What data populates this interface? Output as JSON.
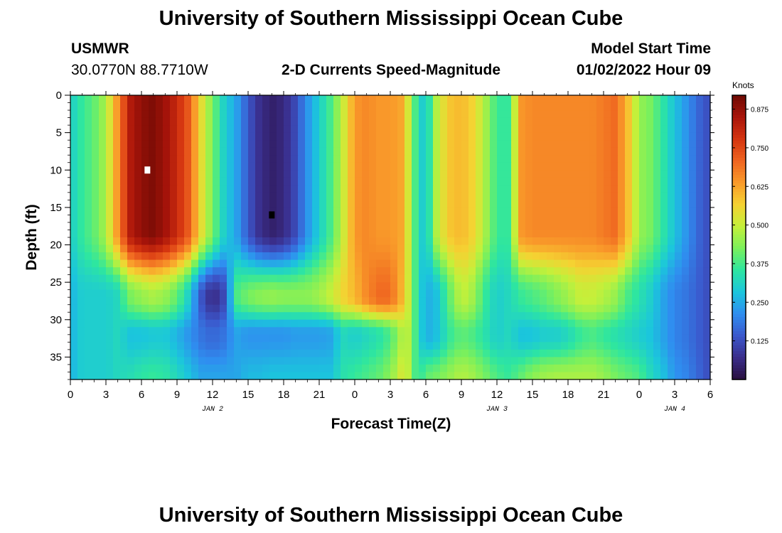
{
  "header": {
    "title": "University of Southern Mississippi Ocean Cube",
    "station": "USMWR",
    "coords": "30.0770N  88.7710W",
    "chart_title": "2-D Currents Speed-Magnitude",
    "model_label": "Model Start Time",
    "model_value": "01/02/2022 Hour 09"
  },
  "footer": {
    "title": "University of Southern Mississippi Ocean Cube"
  },
  "colors": {
    "ramp": [
      "#2a1040",
      "#3a2d8a",
      "#3b58cc",
      "#2f8ef0",
      "#1bc6dc",
      "#2ee6a0",
      "#7bf05c",
      "#c4f03a",
      "#f5d232",
      "#f99a2a",
      "#ef6420",
      "#d43410",
      "#a8140a",
      "#6e0a04"
    ]
  },
  "chart_data": {
    "type": "heatmap",
    "title": "2-D Currents Speed-Magnitude",
    "xlabel": "Forecast Time(Z)",
    "ylabel": "Depth (ft)",
    "units": "Knots",
    "x_ticks": [
      "0",
      "3",
      "6",
      "9",
      "12",
      "15",
      "18",
      "21",
      "0",
      "3",
      "6",
      "9",
      "12",
      "15",
      "18",
      "21",
      "0",
      "3",
      "6"
    ],
    "x_range_hours": [
      0,
      54
    ],
    "y_ticks": [
      "0",
      "5",
      "10",
      "15",
      "20",
      "25",
      "30",
      "35"
    ],
    "y_range_ft": [
      0,
      38
    ],
    "date_labels": [
      "JAN 2",
      "JAN 3",
      "JAN 4"
    ],
    "date_label_hours": [
      12,
      36,
      51
    ],
    "colorbar_ticks": [
      "0.875",
      "0.750",
      "0.625",
      "0.500",
      "0.375",
      "0.250",
      "0.125"
    ],
    "colorbar_tick_values": [
      0.875,
      0.75,
      0.625,
      0.5,
      0.375,
      0.25,
      0.125
    ],
    "colorbar_range": [
      0,
      0.92
    ],
    "grid": {
      "nx": 90,
      "ny": 38
    },
    "max_marker": {
      "hour": 6.5,
      "depth_ft": 10
    },
    "min_marker": {
      "hour": 17,
      "depth_ft": 16
    },
    "columns": [
      {
        "h": 0,
        "s": 0.3,
        "b": 0.26,
        "bs": 0.26,
        "be": 0.26
      },
      {
        "h": 1,
        "s": 0.36,
        "b": 0.3,
        "bs": 0.3,
        "be": 0.3
      },
      {
        "h": 2,
        "s": 0.4,
        "b": 0.3,
        "bs": 0.3,
        "be": 0.3
      },
      {
        "h": 3,
        "s": 0.47,
        "b": 0.3,
        "bs": 0.3,
        "be": 0.3
      },
      {
        "h": 4,
        "s": 0.65,
        "b": 0.32,
        "bs": 0.32,
        "be": 0.32
      },
      {
        "h": 5,
        "s": 0.83,
        "b": 0.42,
        "bs": 0.28,
        "be": 0.33
      },
      {
        "h": 6,
        "s": 0.88,
        "b": 0.45,
        "bs": 0.28,
        "be": 0.35
      },
      {
        "h": 7,
        "s": 0.9,
        "b": 0.47,
        "bs": 0.29,
        "be": 0.36
      },
      {
        "h": 8,
        "s": 0.86,
        "b": 0.45,
        "bs": 0.29,
        "be": 0.35
      },
      {
        "h": 9,
        "s": 0.8,
        "b": 0.4,
        "bs": 0.26,
        "be": 0.32
      },
      {
        "h": 10,
        "s": 0.72,
        "b": 0.3,
        "bs": 0.22,
        "be": 0.28
      },
      {
        "h": 11,
        "s": 0.55,
        "b": 0.14,
        "bs": 0.18,
        "be": 0.24
      },
      {
        "h": 12,
        "s": 0.42,
        "b": 0.06,
        "bs": 0.16,
        "be": 0.24
      },
      {
        "h": 13,
        "s": 0.3,
        "b": 0.12,
        "bs": 0.18,
        "be": 0.24
      },
      {
        "h": 14,
        "s": 0.24,
        "b": 0.38,
        "bs": 0.24,
        "be": 0.24
      },
      {
        "h": 15,
        "s": 0.14,
        "b": 0.42,
        "bs": 0.22,
        "be": 0.27
      },
      {
        "h": 16,
        "s": 0.07,
        "b": 0.44,
        "bs": 0.22,
        "be": 0.27
      },
      {
        "h": 17,
        "s": 0.04,
        "b": 0.45,
        "bs": 0.22,
        "be": 0.28
      },
      {
        "h": 18,
        "s": 0.06,
        "b": 0.44,
        "bs": 0.22,
        "be": 0.28
      },
      {
        "h": 19,
        "s": 0.12,
        "b": 0.44,
        "bs": 0.23,
        "be": 0.28
      },
      {
        "h": 20,
        "s": 0.22,
        "b": 0.44,
        "bs": 0.23,
        "be": 0.28
      },
      {
        "h": 21,
        "s": 0.3,
        "b": 0.46,
        "bs": 0.23,
        "be": 0.28
      },
      {
        "h": 22,
        "s": 0.38,
        "b": 0.5,
        "bs": 0.24,
        "be": 0.28
      },
      {
        "h": 23,
        "s": 0.5,
        "b": 0.56,
        "bs": 0.32,
        "be": 0.34
      },
      {
        "h": 24,
        "s": 0.64,
        "b": 0.6,
        "bs": 0.3,
        "be": 0.36
      },
      {
        "h": 25,
        "s": 0.66,
        "b": 0.66,
        "bs": 0.32,
        "be": 0.38
      },
      {
        "h": 26,
        "s": 0.64,
        "b": 0.7,
        "bs": 0.34,
        "be": 0.4
      },
      {
        "h": 27,
        "s": 0.64,
        "b": 0.7,
        "bs": 0.38,
        "be": 0.44
      },
      {
        "h": 28,
        "s": 0.62,
        "b": 0.6,
        "bs": 0.48,
        "be": 0.52
      },
      {
        "h": 28.7,
        "s": 0.48,
        "b": 0.48,
        "bs": 0.48,
        "be": 0.48
      },
      {
        "h": 29.3,
        "s": 0.33,
        "b": 0.33,
        "bs": 0.33,
        "be": 0.33
      },
      {
        "h": 30,
        "s": 0.28,
        "b": 0.25,
        "bs": 0.25,
        "be": 0.4
      },
      {
        "h": 31,
        "s": 0.5,
        "b": 0.28,
        "bs": 0.28,
        "be": 0.42
      },
      {
        "h": 32,
        "s": 0.58,
        "b": 0.4,
        "bs": 0.36,
        "be": 0.45
      },
      {
        "h": 33,
        "s": 0.6,
        "b": 0.5,
        "bs": 0.4,
        "be": 0.48
      },
      {
        "h": 34,
        "s": 0.56,
        "b": 0.46,
        "bs": 0.38,
        "be": 0.46
      },
      {
        "h": 35,
        "s": 0.47,
        "b": 0.36,
        "bs": 0.34,
        "be": 0.42
      },
      {
        "h": 36,
        "s": 0.36,
        "b": 0.3,
        "bs": 0.3,
        "be": 0.38
      },
      {
        "h": 37,
        "s": 0.36,
        "b": 0.32,
        "bs": 0.32,
        "be": 0.36
      },
      {
        "h": 38,
        "s": 0.64,
        "b": 0.36,
        "bs": 0.28,
        "be": 0.4
      },
      {
        "h": 39,
        "s": 0.66,
        "b": 0.38,
        "bs": 0.28,
        "be": 0.44
      },
      {
        "h": 40,
        "s": 0.66,
        "b": 0.4,
        "bs": 0.3,
        "be": 0.46
      },
      {
        "h": 41,
        "s": 0.66,
        "b": 0.43,
        "bs": 0.3,
        "be": 0.47
      },
      {
        "h": 42,
        "s": 0.66,
        "b": 0.46,
        "bs": 0.32,
        "be": 0.47
      },
      {
        "h": 43,
        "s": 0.66,
        "b": 0.5,
        "bs": 0.36,
        "be": 0.47
      },
      {
        "h": 44,
        "s": 0.66,
        "b": 0.5,
        "bs": 0.38,
        "be": 0.47
      },
      {
        "h": 45,
        "s": 0.68,
        "b": 0.48,
        "bs": 0.36,
        "be": 0.45
      },
      {
        "h": 46,
        "s": 0.7,
        "b": 0.45,
        "bs": 0.34,
        "be": 0.42
      },
      {
        "h": 47,
        "s": 0.6,
        "b": 0.38,
        "bs": 0.32,
        "be": 0.4
      },
      {
        "h": 48,
        "s": 0.45,
        "b": 0.34,
        "bs": 0.3,
        "be": 0.38
      },
      {
        "h": 49,
        "s": 0.42,
        "b": 0.3,
        "bs": 0.28,
        "be": 0.32
      },
      {
        "h": 50,
        "s": 0.35,
        "b": 0.24,
        "bs": 0.24,
        "be": 0.28
      },
      {
        "h": 51,
        "s": 0.28,
        "b": 0.2,
        "bs": 0.2,
        "be": 0.22
      },
      {
        "h": 52,
        "s": 0.22,
        "b": 0.18,
        "bs": 0.18,
        "be": 0.2
      },
      {
        "h": 53,
        "s": 0.16,
        "b": 0.15,
        "bs": 0.15,
        "be": 0.16
      },
      {
        "h": 54,
        "s": 0.12,
        "b": 0.12,
        "bs": 0.12,
        "be": 0.12
      }
    ]
  }
}
